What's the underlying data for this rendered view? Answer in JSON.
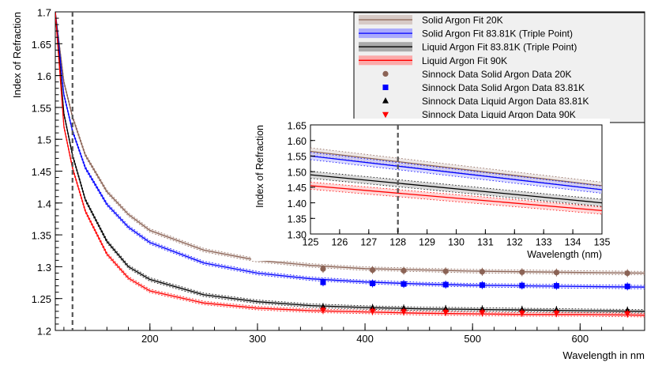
{
  "chart_data": [
    {
      "type": "line",
      "id": "main",
      "xlabel": "Wavelength in nm",
      "ylabel": "Index of Refraction",
      "xlim": [
        112,
        660
      ],
      "ylim": [
        1.2,
        1.7
      ],
      "x_ticks": [
        200,
        300,
        400,
        500,
        600
      ],
      "y_ticks": [
        1.2,
        1.25,
        1.3,
        1.35,
        1.4,
        1.45,
        1.5,
        1.55,
        1.6,
        1.65,
        1.7
      ],
      "y_tick_labels": [
        "1.2",
        "1.25",
        "1.3",
        "1.35",
        "1.4",
        "1.45",
        "1.5",
        "1.55",
        "1.6",
        "1.65",
        "1.7"
      ],
      "reference_line_x": 128,
      "grid": false,
      "legend_position": "top-right",
      "series": [
        {
          "name": "Solid Argon Fit 20K",
          "color": "#8b6355",
          "style": "fit-band",
          "x": [
            112,
            120,
            128,
            140,
            160,
            180,
            200,
            250,
            300,
            350,
            400,
            450,
            500,
            550,
            600,
            660
          ],
          "y": [
            1.7,
            1.59,
            1.535,
            1.475,
            1.418,
            1.382,
            1.357,
            1.326,
            1.31,
            1.302,
            1.297,
            1.295,
            1.293,
            1.292,
            1.291,
            1.29
          ]
        },
        {
          "name": "Solid Argon Fit 83.81K (Triple Point)",
          "color": "#0000ff",
          "style": "fit-band",
          "x": [
            112,
            120,
            128,
            140,
            160,
            180,
            200,
            250,
            300,
            350,
            400,
            450,
            500,
            550,
            600,
            660
          ],
          "y": [
            1.7,
            1.57,
            1.513,
            1.455,
            1.398,
            1.362,
            1.338,
            1.306,
            1.29,
            1.281,
            1.276,
            1.273,
            1.271,
            1.27,
            1.269,
            1.268
          ]
        },
        {
          "name": "Liquid Argon Fit 83.81K (Triple Point)",
          "color": "#000000",
          "style": "fit-band",
          "x": [
            112,
            120,
            128,
            140,
            160,
            180,
            200,
            250,
            300,
            350,
            400,
            450,
            500,
            550,
            600,
            660
          ],
          "y": [
            1.7,
            1.54,
            1.475,
            1.405,
            1.34,
            1.3,
            1.28,
            1.256,
            1.245,
            1.239,
            1.236,
            1.234,
            1.233,
            1.232,
            1.231,
            1.23
          ]
        },
        {
          "name": "Liquid Argon Fit 90K",
          "color": "#ff0000",
          "style": "fit-band",
          "x": [
            112,
            120,
            128,
            140,
            160,
            180,
            200,
            250,
            300,
            350,
            400,
            450,
            500,
            550,
            600,
            660
          ],
          "y": [
            1.7,
            1.52,
            1.455,
            1.387,
            1.32,
            1.282,
            1.262,
            1.243,
            1.235,
            1.231,
            1.229,
            1.227,
            1.226,
            1.225,
            1.225,
            1.224
          ]
        },
        {
          "name": "Sinnock Data Solid Argon Data 20K",
          "color": "#8b6355",
          "style": "markers",
          "marker": "circle",
          "x": [
            361,
            407,
            436,
            475,
            509,
            546,
            578,
            644
          ],
          "y": [
            1.2965,
            1.2948,
            1.2938,
            1.2928,
            1.2921,
            1.2914,
            1.2909,
            1.2899
          ]
        },
        {
          "name": "Sinnock Data Solid Argon Data 83.81K",
          "color": "#0000ff",
          "style": "markers",
          "marker": "square",
          "x": [
            361,
            407,
            436,
            475,
            509,
            546,
            578,
            644
          ],
          "y": [
            1.2755,
            1.2738,
            1.2729,
            1.2719,
            1.2711,
            1.2705,
            1.27,
            1.2691
          ]
        },
        {
          "name": "Sinnock Data Liquid Argon Data 83.81K",
          "color": "#000000",
          "style": "markers",
          "marker": "triangle-up",
          "x": [
            361,
            407,
            436,
            475,
            509,
            546,
            578,
            644
          ],
          "y": [
            1.2368,
            1.2353,
            1.2345,
            1.2337,
            1.2331,
            1.2325,
            1.2321,
            1.2313
          ]
        },
        {
          "name": "Sinnock Data Liquid Argon Data 90K",
          "color": "#ff0000",
          "style": "markers",
          "marker": "triangle-down",
          "x": [
            361,
            407,
            436,
            475,
            509,
            546,
            578,
            644
          ],
          "y": [
            1.2318,
            1.2302,
            1.2295,
            1.2287,
            1.228,
            1.2275,
            1.2271,
            1.2263
          ]
        }
      ]
    },
    {
      "type": "line",
      "id": "inset",
      "xlabel": "Wavelength (nm)",
      "ylabel": "Index of Refraction",
      "xlim": [
        125,
        135
      ],
      "ylim": [
        1.3,
        1.65
      ],
      "x_ticks": [
        125,
        126,
        127,
        128,
        129,
        130,
        131,
        132,
        133,
        134,
        135
      ],
      "y_ticks": [
        1.3,
        1.35,
        1.4,
        1.45,
        1.5,
        1.55,
        1.6,
        1.65
      ],
      "y_tick_labels": [
        "1.30",
        "1.35",
        "1.40",
        "1.45",
        "1.50",
        "1.55",
        "1.60",
        "1.65"
      ],
      "reference_line_x": 128,
      "grid": false,
      "series": [
        {
          "name": "Solid Argon Fit 20K",
          "color": "#8b6355",
          "x": [
            125,
            135
          ],
          "y": [
            1.565,
            1.455
          ]
        },
        {
          "name": "Solid Argon Fit 83.81K (Triple Point)",
          "color": "#0000ff",
          "x": [
            125,
            135
          ],
          "y": [
            1.55,
            1.442
          ]
        },
        {
          "name": "Liquid Argon Fit 83.81K (Triple Point)",
          "color": "#000000",
          "x": [
            125,
            135
          ],
          "y": [
            1.49,
            1.4
          ]
        },
        {
          "name": "Liquid Argon Fit 90K",
          "color": "#ff0000",
          "x": [
            125,
            135
          ],
          "y": [
            1.455,
            1.375
          ]
        }
      ]
    }
  ]
}
